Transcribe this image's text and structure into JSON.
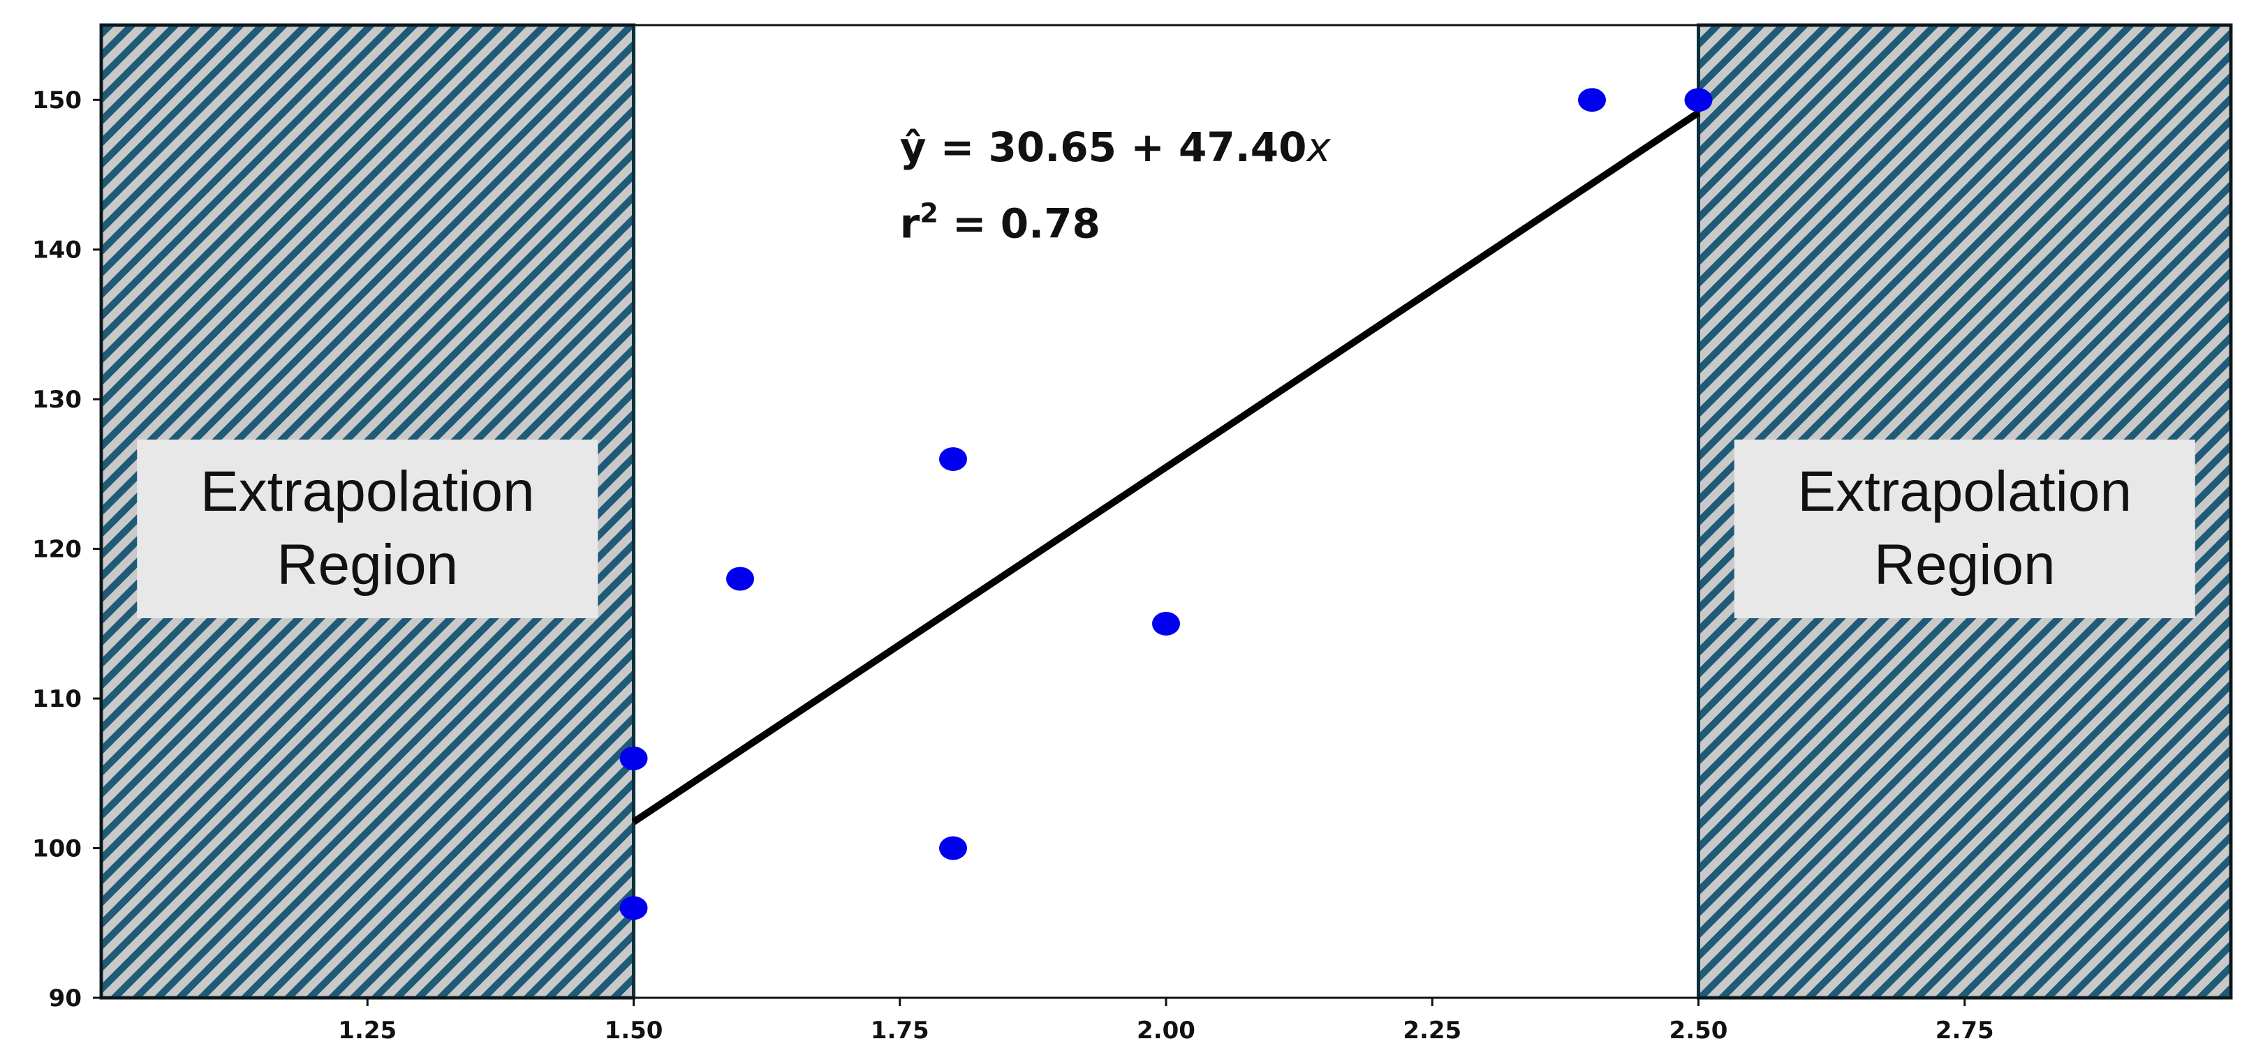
{
  "chart_data": {
    "type": "scatter",
    "title": "",
    "xlabel": "",
    "ylabel": "",
    "xlim": [
      1.0,
      3.0
    ],
    "ylim": [
      90,
      155
    ],
    "x_ticks": [
      "1.25",
      "1.50",
      "1.75",
      "2.00",
      "2.25",
      "2.50",
      "2.75"
    ],
    "x_tick_values": [
      1.25,
      1.5,
      1.75,
      2.0,
      2.25,
      2.5,
      2.75
    ],
    "y_ticks": [
      "90",
      "100",
      "110",
      "120",
      "130",
      "140",
      "150"
    ],
    "y_tick_values": [
      90,
      100,
      110,
      120,
      130,
      140,
      150
    ],
    "grid": false,
    "point_color": "#0000ee",
    "line_color": "#000000",
    "points": [
      {
        "x": 1.5,
        "y": 96
      },
      {
        "x": 1.5,
        "y": 106
      },
      {
        "x": 1.6,
        "y": 118
      },
      {
        "x": 1.8,
        "y": 126
      },
      {
        "x": 1.8,
        "y": 100
      },
      {
        "x": 2.0,
        "y": 115
      },
      {
        "x": 2.4,
        "y": 150
      },
      {
        "x": 2.5,
        "y": 150
      }
    ],
    "regression_line": {
      "intercept": 30.65,
      "slope": 47.4,
      "x_start": 1.5,
      "x_end": 2.5
    },
    "annotations": {
      "equation_prefix": "ŷ = 30.65 + 47.40",
      "equation_var": "x",
      "r_squared_label": "r",
      "r_squared_exp": "2",
      "r_squared_value": " = 0.78"
    },
    "shaded_regions": [
      {
        "x_from": 1.0,
        "x_to": 1.5,
        "label_line1": "Extrapolation",
        "label_line2": "Region"
      },
      {
        "x_from": 2.5,
        "x_to": 3.0,
        "label_line1": "Extrapolation",
        "label_line2": "Region"
      }
    ],
    "hatch_colors": {
      "stripe": "#1f5a76",
      "base": "#c9c9c9",
      "label_box": "#e8e8e8"
    }
  }
}
